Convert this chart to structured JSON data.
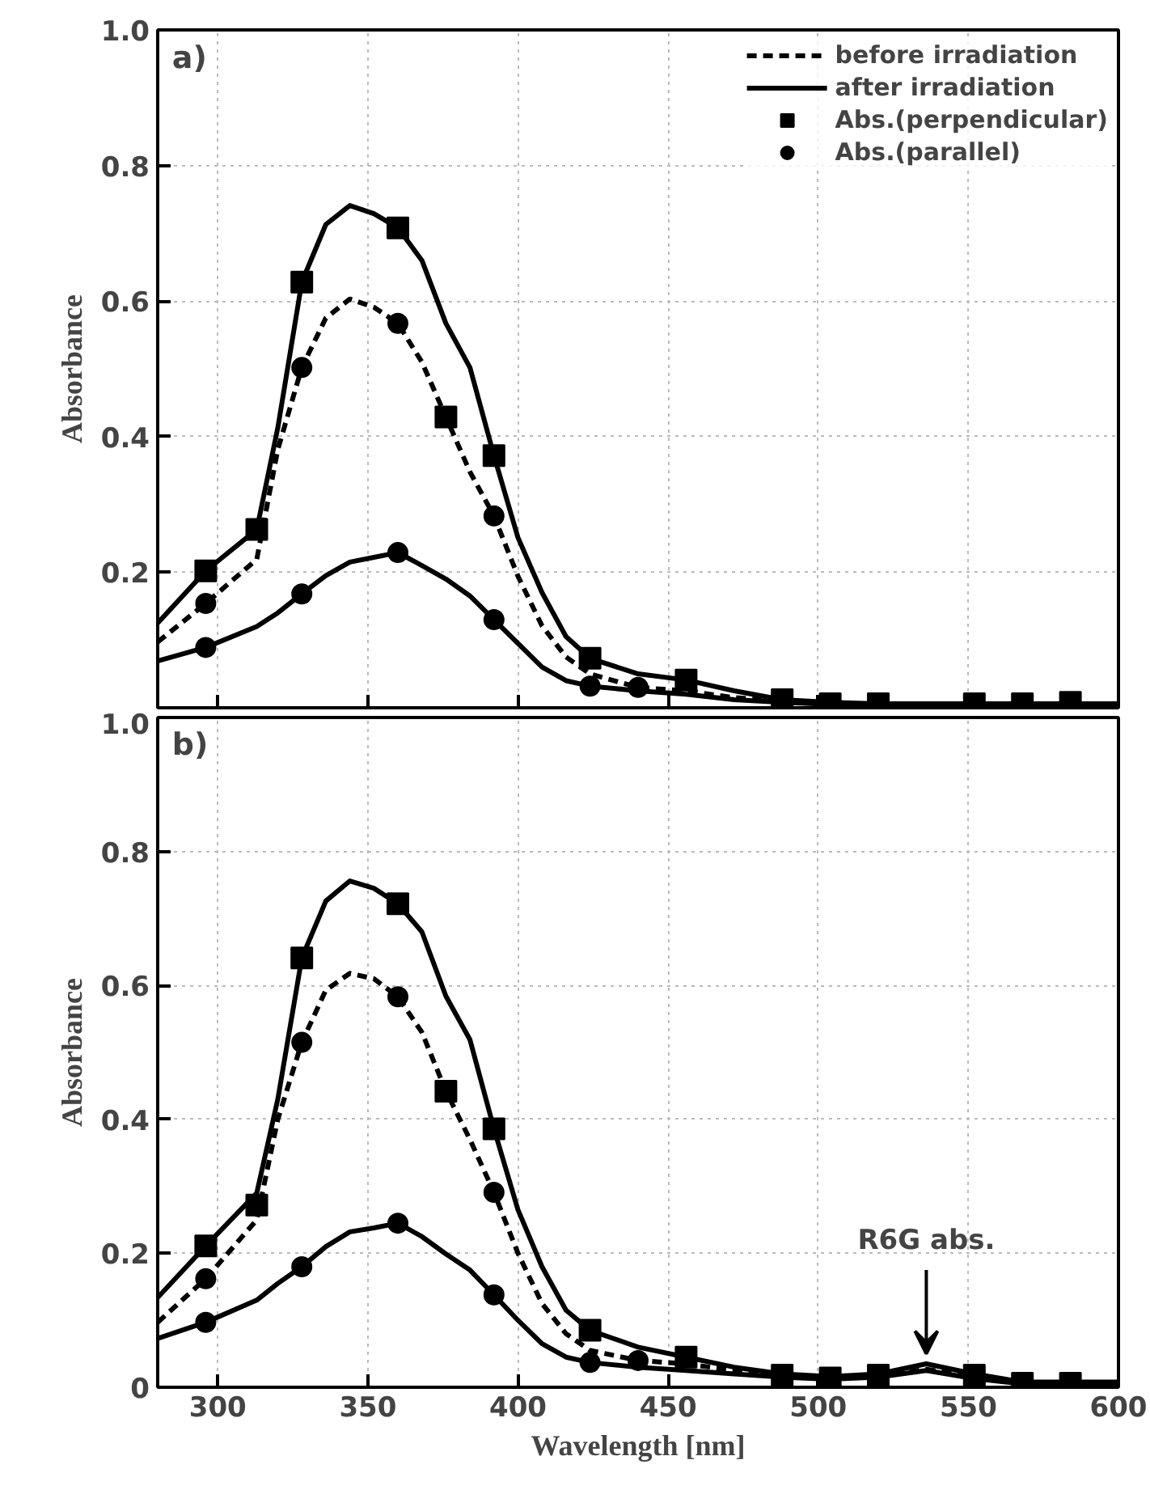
{
  "chart_data": [
    {
      "type": "line",
      "annotations": [
        "a)"
      ],
      "ylabel": "Absorbance",
      "xlim": [
        280,
        600
      ],
      "ylim": [
        0,
        1.0
      ],
      "xticks": [
        300,
        350,
        400,
        450,
        500,
        550,
        600
      ],
      "yticks": [
        0.2,
        0.4,
        0.6,
        0.8,
        {
          "value": 1.0,
          "label": "1.0"
        }
      ],
      "tick_labels": "y",
      "grid": true,
      "legend": "top right",
      "x": [
        280,
        296,
        313,
        320,
        328,
        336,
        344,
        352,
        360,
        368,
        376,
        384,
        392,
        400,
        408,
        416,
        424,
        440,
        456,
        472,
        488,
        504,
        520,
        536,
        552,
        568,
        584,
        600
      ],
      "series": [
        {
          "name": "before irradiation",
          "line_style": "dashed",
          "color": "#000000",
          "values": [
            0.097,
            0.154,
            0.219,
            0.381,
            0.502,
            0.575,
            0.603,
            0.591,
            0.567,
            0.51,
            0.429,
            0.348,
            0.283,
            0.194,
            0.121,
            0.075,
            0.05,
            0.03,
            0.025,
            0.015,
            0.01,
            0.006,
            0.006,
            0.006,
            0.006,
            0.006,
            0.006,
            0.006
          ]
        },
        {
          "name": "after irradiation",
          "line_style": "solid",
          "color": "#000000",
          "values": [
            0.125,
            0.202,
            0.263,
            0.413,
            0.628,
            0.713,
            0.741,
            0.729,
            0.708,
            0.66,
            0.567,
            0.502,
            0.372,
            0.251,
            0.17,
            0.105,
            0.073,
            0.05,
            0.041,
            0.025,
            0.012,
            0.008,
            0.006,
            0.006,
            0.006,
            0.006,
            0.006,
            0.006
          ]
        },
        {
          "line_style": "solid",
          "color": "#000000",
          "values": [
            0.069,
            0.089,
            0.12,
            0.14,
            0.168,
            0.195,
            0.215,
            0.222,
            0.229,
            0.21,
            0.19,
            0.165,
            0.13,
            0.095,
            0.06,
            0.04,
            0.032,
            0.025,
            0.02,
            0.012,
            0.008,
            0.005,
            0.005,
            0.005,
            0.005,
            0.005,
            0.005,
            0.005
          ]
        },
        {
          "name": "Abs.(perpendicular)",
          "type": "scatter",
          "marker": "square",
          "line_style": "dashed",
          "color": "#000000",
          "x": [
            296,
            313,
            328,
            360,
            376,
            392,
            424,
            456,
            488,
            504,
            520,
            552,
            568,
            584
          ],
          "values": [
            0.202,
            0.263,
            0.628,
            0.708,
            0.429,
            0.372,
            0.073,
            0.041,
            0.012,
            0.006,
            0.006,
            0.006,
            0.006,
            0.008
          ]
        },
        {
          "name": "Abs.(parallel)",
          "type": "scatter",
          "marker": "circle",
          "line_style": "dashed",
          "color": "#000000",
          "x": [
            296,
            328,
            360,
            392,
            296,
            328,
            360,
            392,
            424,
            440
          ],
          "values": [
            0.154,
            0.502,
            0.567,
            0.283,
            0.089,
            0.168,
            0.229,
            0.13,
            0.032,
            0.03
          ]
        }
      ]
    },
    {
      "type": "line",
      "annotations": [
        "b)",
        {
          "text": "R6G abs.",
          "x": 536,
          "y": 0.035
        }
      ],
      "xlabel": "Wavelength [nm]",
      "ylabel": "Absorbance",
      "xlim": [
        280,
        600
      ],
      "ylim": [
        0,
        1.0
      ],
      "xticks": [
        300,
        350,
        400,
        450,
        500,
        550,
        600
      ],
      "yticks": [
        0,
        0.2,
        0.4,
        0.6,
        0.8,
        {
          "value": 1.0,
          "label": "1.0"
        }
      ],
      "grid": true,
      "x": [
        280,
        296,
        313,
        320,
        328,
        336,
        344,
        352,
        360,
        368,
        376,
        384,
        392,
        400,
        408,
        416,
        424,
        440,
        456,
        472,
        488,
        504,
        520,
        536,
        552,
        568,
        584,
        600
      ],
      "series": [
        {
          "line_style": "dashed",
          "color": "#000000",
          "values": [
            0.097,
            0.162,
            0.25,
            0.4,
            0.515,
            0.593,
            0.618,
            0.61,
            0.583,
            0.53,
            0.442,
            0.37,
            0.291,
            0.2,
            0.125,
            0.08,
            0.055,
            0.04,
            0.035,
            0.025,
            0.018,
            0.014,
            0.016,
            0.027,
            0.016,
            0.006,
            0.006,
            0.006
          ]
        },
        {
          "line_style": "solid",
          "color": "#000000",
          "values": [
            0.134,
            0.211,
            0.29,
            0.43,
            0.641,
            0.726,
            0.756,
            0.745,
            0.722,
            0.68,
            0.584,
            0.519,
            0.386,
            0.265,
            0.18,
            0.115,
            0.085,
            0.06,
            0.045,
            0.03,
            0.02,
            0.016,
            0.02,
            0.035,
            0.02,
            0.008,
            0.008,
            0.008
          ]
        },
        {
          "line_style": "solid",
          "color": "#000000",
          "values": [
            0.073,
            0.097,
            0.13,
            0.155,
            0.18,
            0.21,
            0.232,
            0.238,
            0.245,
            0.225,
            0.199,
            0.175,
            0.138,
            0.1,
            0.065,
            0.045,
            0.037,
            0.03,
            0.025,
            0.02,
            0.015,
            0.012,
            0.015,
            0.025,
            0.013,
            0.005,
            0.005,
            0.005
          ]
        },
        {
          "type": "scatter",
          "marker": "square",
          "color": "#000000",
          "x": [
            296,
            313,
            328,
            360,
            376,
            392,
            424,
            456,
            488,
            504,
            520,
            552,
            568,
            584
          ],
          "values": [
            0.211,
            0.272,
            0.641,
            0.722,
            0.442,
            0.386,
            0.085,
            0.045,
            0.018,
            0.014,
            0.018,
            0.018,
            0.006,
            0.006
          ]
        },
        {
          "type": "scatter",
          "marker": "circle",
          "color": "#000000",
          "x": [
            296,
            328,
            360,
            392,
            296,
            328,
            360,
            392,
            424,
            440
          ],
          "values": [
            0.162,
            0.515,
            0.583,
            0.291,
            0.097,
            0.18,
            0.245,
            0.138,
            0.037,
            0.04
          ]
        }
      ]
    }
  ]
}
